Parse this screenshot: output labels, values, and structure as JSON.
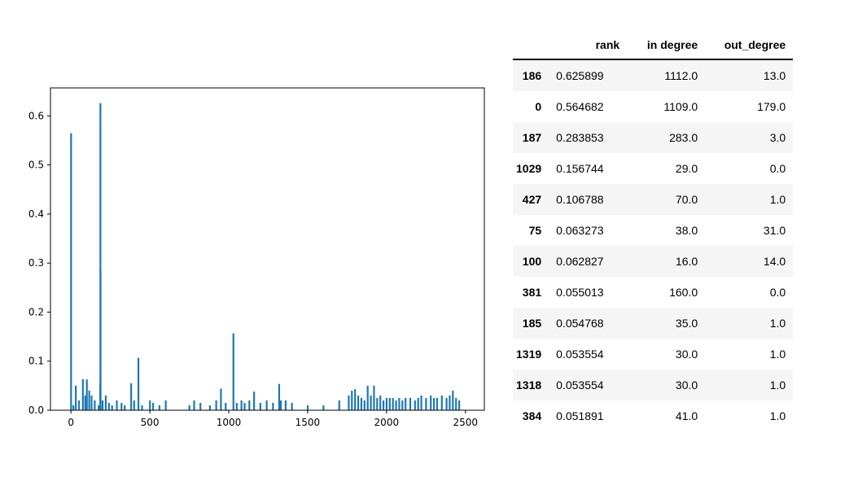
{
  "chart_data": {
    "type": "bar",
    "title": "",
    "xlabel": "",
    "ylabel": "",
    "xlim": [
      -130,
      2620
    ],
    "ylim": [
      0,
      0.657
    ],
    "xticks": [
      0,
      500,
      1000,
      1500,
      2000,
      2500
    ],
    "yticks": [
      0.0,
      0.1,
      0.2,
      0.3,
      0.4,
      0.5,
      0.6
    ],
    "ytick_labels": [
      "0.0",
      "0.1",
      "0.2",
      "0.3",
      "0.4",
      "0.5",
      "0.6"
    ],
    "grid": false,
    "color": "#1f77b4",
    "x": [
      0,
      15,
      30,
      50,
      75,
      90,
      100,
      115,
      130,
      150,
      175,
      185,
      186,
      187,
      200,
      220,
      240,
      260,
      290,
      320,
      340,
      381,
      400,
      427,
      450,
      500,
      520,
      560,
      600,
      750,
      780,
      820,
      880,
      920,
      950,
      980,
      1029,
      1050,
      1080,
      1100,
      1130,
      1160,
      1200,
      1240,
      1280,
      1319,
      1330,
      1360,
      1400,
      1500,
      1600,
      1700,
      1760,
      1780,
      1800,
      1820,
      1840,
      1860,
      1880,
      1900,
      1920,
      1940,
      1960,
      1980,
      2000,
      2020,
      2040,
      2060,
      2080,
      2100,
      2120,
      2150,
      2180,
      2200,
      2220,
      2250,
      2280,
      2300,
      2320,
      2350,
      2380,
      2400,
      2420,
      2440,
      2460
    ],
    "values": [
      0.564682,
      0.01,
      0.05,
      0.02,
      0.063273,
      0.03,
      0.062827,
      0.04,
      0.03,
      0.02,
      0.01,
      0.054768,
      0.625899,
      0.283853,
      0.02,
      0.03,
      0.015,
      0.01,
      0.02,
      0.015,
      0.01,
      0.055013,
      0.02,
      0.106788,
      0.01,
      0.02,
      0.015,
      0.01,
      0.02,
      0.01,
      0.02,
      0.015,
      0.01,
      0.02,
      0.044,
      0.015,
      0.156744,
      0.015,
      0.02,
      0.015,
      0.02,
      0.038,
      0.015,
      0.02,
      0.015,
      0.053554,
      0.02,
      0.02,
      0.015,
      0.01,
      0.01,
      0.02,
      0.03,
      0.04,
      0.043,
      0.03,
      0.025,
      0.02,
      0.05,
      0.03,
      0.05,
      0.025,
      0.03,
      0.02,
      0.025,
      0.025,
      0.025,
      0.02,
      0.025,
      0.02,
      0.025,
      0.025,
      0.02,
      0.025,
      0.03,
      0.025,
      0.03,
      0.025,
      0.025,
      0.03,
      0.025,
      0.03,
      0.04,
      0.025,
      0.02
    ]
  },
  "table": {
    "columns": [
      "",
      "rank",
      "in degree",
      "out_degree"
    ],
    "rows": [
      {
        "index": "186",
        "rank": "0.625899",
        "in_degree": "1112.0",
        "out_degree": "13.0"
      },
      {
        "index": "0",
        "rank": "0.564682",
        "in_degree": "1109.0",
        "out_degree": "179.0"
      },
      {
        "index": "187",
        "rank": "0.283853",
        "in_degree": "283.0",
        "out_degree": "3.0"
      },
      {
        "index": "1029",
        "rank": "0.156744",
        "in_degree": "29.0",
        "out_degree": "0.0"
      },
      {
        "index": "427",
        "rank": "0.106788",
        "in_degree": "70.0",
        "out_degree": "1.0"
      },
      {
        "index": "75",
        "rank": "0.063273",
        "in_degree": "38.0",
        "out_degree": "31.0"
      },
      {
        "index": "100",
        "rank": "0.062827",
        "in_degree": "16.0",
        "out_degree": "14.0"
      },
      {
        "index": "381",
        "rank": "0.055013",
        "in_degree": "160.0",
        "out_degree": "0.0"
      },
      {
        "index": "185",
        "rank": "0.054768",
        "in_degree": "35.0",
        "out_degree": "1.0"
      },
      {
        "index": "1319",
        "rank": "0.053554",
        "in_degree": "30.0",
        "out_degree": "1.0"
      },
      {
        "index": "1318",
        "rank": "0.053554",
        "in_degree": "30.0",
        "out_degree": "1.0"
      },
      {
        "index": "384",
        "rank": "0.051891",
        "in_degree": "41.0",
        "out_degree": "1.0"
      }
    ]
  }
}
